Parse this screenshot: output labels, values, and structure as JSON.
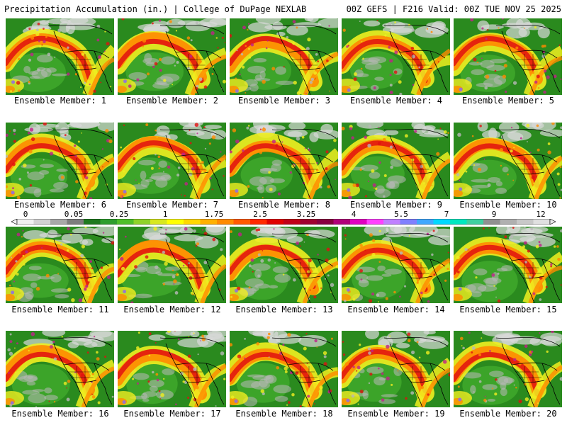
{
  "header": {
    "left_title": "Precipitation Accumulation (in.) | College of DuPage NEXLAB",
    "right_title": "00Z GEFS | F216 Valid: 00Z TUE NOV 25 2025"
  },
  "panels": [
    {
      "label": "Ensemble Member: 1"
    },
    {
      "label": "Ensemble Member: 2"
    },
    {
      "label": "Ensemble Member: 3"
    },
    {
      "label": "Ensemble Member: 4"
    },
    {
      "label": "Ensemble Member: 5"
    },
    {
      "label": "Ensemble Member: 6"
    },
    {
      "label": "Ensemble Member: 7"
    },
    {
      "label": "Ensemble Member: 8"
    },
    {
      "label": "Ensemble Member: 9"
    },
    {
      "label": "Ensemble Member: 10"
    },
    {
      "label": "Ensemble Member: 11"
    },
    {
      "label": "Ensemble Member: 12"
    },
    {
      "label": "Ensemble Member: 13"
    },
    {
      "label": "Ensemble Member: 14"
    },
    {
      "label": "Ensemble Member: 15"
    },
    {
      "label": "Ensemble Member: 16"
    },
    {
      "label": "Ensemble Member: 17"
    },
    {
      "label": "Ensemble Member: 18"
    },
    {
      "label": "Ensemble Member: 19"
    },
    {
      "label": "Ensemble Member: 20"
    }
  ],
  "colorbar": {
    "tick_labels": [
      "0",
      "0.05",
      "0.25",
      "1",
      "1.75",
      "2.5",
      "3.25",
      "4",
      "5.5",
      "7",
      "9",
      "12"
    ],
    "colors": [
      "#f0f0f0",
      "#d2d2d2",
      "#a8a8a8",
      "#7d7d7d",
      "#1f7a1f",
      "#2e9e2e",
      "#4fbf2a",
      "#8fd22a",
      "#d8e81e",
      "#ffff00",
      "#ffd800",
      "#ffb000",
      "#ff8a00",
      "#ff5a00",
      "#ff2a00",
      "#e00000",
      "#c00018",
      "#a00030",
      "#880040",
      "#b0007a",
      "#e000c0",
      "#ff40ff",
      "#c080ff",
      "#8080ff",
      "#40a8ff",
      "#00d8ff",
      "#00e8c0",
      "#40d0a0",
      "#909090",
      "#b0b0b0",
      "#c8c8c8",
      "#e0e0e0"
    ],
    "palette": {
      "ocean": "#2a8a1e",
      "ocean_light": "#3ea62a",
      "land": "#1e7a1e",
      "dry_grey": "#b8b8b8",
      "yellow": "#f0ee20",
      "orange": "#ff8a00",
      "red": "#e01010",
      "magenta": "#c0208a",
      "purple": "#9070e0",
      "border": "#000000"
    }
  }
}
